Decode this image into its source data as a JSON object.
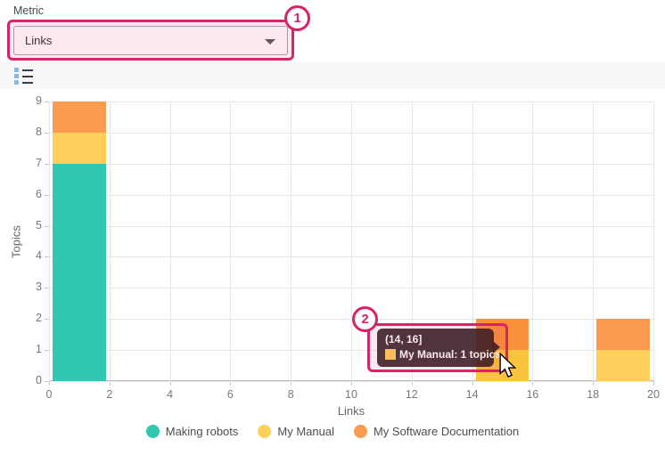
{
  "metric_panel": {
    "label": "Metric",
    "selected_value": "Links"
  },
  "callouts": {
    "one": "1",
    "two": "2"
  },
  "tooltip": {
    "title": "(14, 16]",
    "text": "My Manual: 1 topics",
    "swatch_color": "#ffce5b"
  },
  "chart_data": {
    "type": "bar",
    "stacked": true,
    "xlabel": "Links",
    "ylabel": "Topics",
    "xlim": [
      0,
      20
    ],
    "ylim": [
      0,
      9
    ],
    "x_ticks": [
      0,
      2,
      4,
      6,
      8,
      10,
      12,
      14,
      16,
      18,
      20
    ],
    "y_ticks": [
      0,
      1,
      2,
      3,
      4,
      5,
      6,
      7,
      8,
      9
    ],
    "grid": true,
    "legend_position": "bottom",
    "series": [
      {
        "name": "Making robots",
        "color": "#2fc9b2",
        "hover_color": "#2fc9b2"
      },
      {
        "name": "My Manual",
        "color": "#ffce5b",
        "hover_color": "#fcc33c"
      },
      {
        "name": "My Software Documentation",
        "color": "#fb9a50",
        "hover_color": "#f9923b"
      }
    ],
    "bins": [
      {
        "range": [
          0,
          2
        ],
        "values": {
          "Making robots": 7,
          "My Manual": 1,
          "My Software Documentation": 1
        },
        "hovered": false
      },
      {
        "range": [
          14,
          16
        ],
        "values": {
          "My Manual": 1,
          "My Software Documentation": 1
        },
        "hovered": true
      },
      {
        "range": [
          18,
          20
        ],
        "values": {
          "My Manual": 1,
          "My Software Documentation": 1
        },
        "hovered": false
      }
    ]
  }
}
